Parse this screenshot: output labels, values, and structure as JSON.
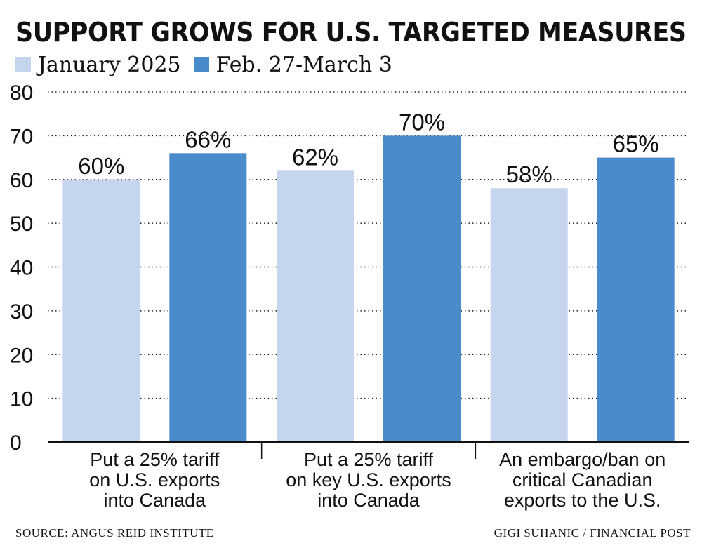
{
  "title": "SUPPORT GROWS FOR U.S. TARGETED MEASURES",
  "source": "SOURCE: ANGUS REID INSTITUTE",
  "credit": "GIGI SUHANIC / FINANCIAL POST",
  "colors": {
    "series_1": "#c5d5ee",
    "series_2": "#4a8ccb"
  },
  "chart_data": {
    "type": "bar",
    "categories": [
      [
        "Put a 25% tariff",
        "on U.S. exports",
        "into Canada"
      ],
      [
        "Put a 25% tariff",
        "on key U.S. exports",
        "into Canada"
      ],
      [
        "An embargo/ban on",
        "critical Canadian",
        "exports to the U.S."
      ]
    ],
    "series": [
      {
        "name": "January 2025",
        "values": [
          60,
          62,
          58
        ],
        "labels": [
          "60%",
          "62%",
          "58%"
        ]
      },
      {
        "name": "Feb. 27-March 3",
        "values": [
          66,
          70,
          65
        ],
        "labels": [
          "66%",
          "70%",
          "65%"
        ]
      }
    ],
    "yticks": [
      0,
      10,
      20,
      30,
      40,
      50,
      60,
      70,
      80
    ],
    "ylim": [
      0,
      80
    ],
    "grid": true,
    "legend": "top-left"
  }
}
